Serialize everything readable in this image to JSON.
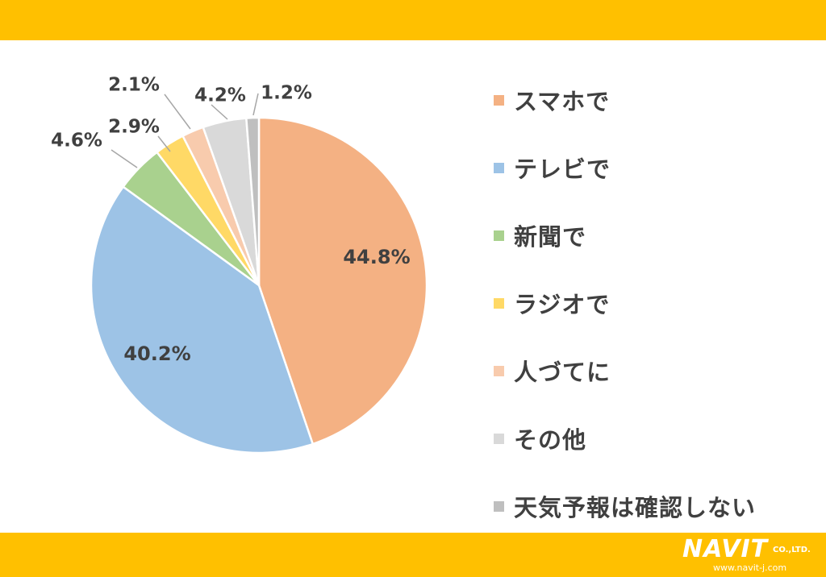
{
  "chart_data": {
    "type": "pie",
    "start_angle_deg": 0,
    "direction": "clockwise",
    "slices": [
      {
        "label": "スマホで",
        "value": 44.8,
        "display": "44.8%",
        "color": "#F4B183",
        "label_position": "inside"
      },
      {
        "label": "テレビで",
        "value": 40.2,
        "display": "40.2%",
        "color": "#9DC3E6",
        "label_position": "inside"
      },
      {
        "label": "新聞で",
        "value": 4.6,
        "display": "4.6%",
        "color": "#A9D18E",
        "label_position": "outside"
      },
      {
        "label": "ラジオで",
        "value": 2.9,
        "display": "2.9%",
        "color": "#FFD966",
        "label_position": "outside"
      },
      {
        "label": "人づてに",
        "value": 2.1,
        "display": "2.1%",
        "color": "#F8CBAD",
        "label_position": "outside"
      },
      {
        "label": "その他",
        "value": 4.2,
        "display": "4.2%",
        "color": "#D9D9D9",
        "label_position": "outside"
      },
      {
        "label": "天気予報は確認しない",
        "value": 1.2,
        "display": "1.2%",
        "color": "#BFBFBF",
        "label_position": "outside"
      }
    ],
    "legend_position": "right",
    "legend_items": [
      "スマホで",
      "テレビで",
      "新聞で",
      "ラジオで",
      "人づてに",
      "その他",
      "天気予報は確認しない"
    ]
  },
  "logo": {
    "brand": "NAVIT",
    "suffix": "CO.,LTD.",
    "url": "www.navit-j.com"
  }
}
